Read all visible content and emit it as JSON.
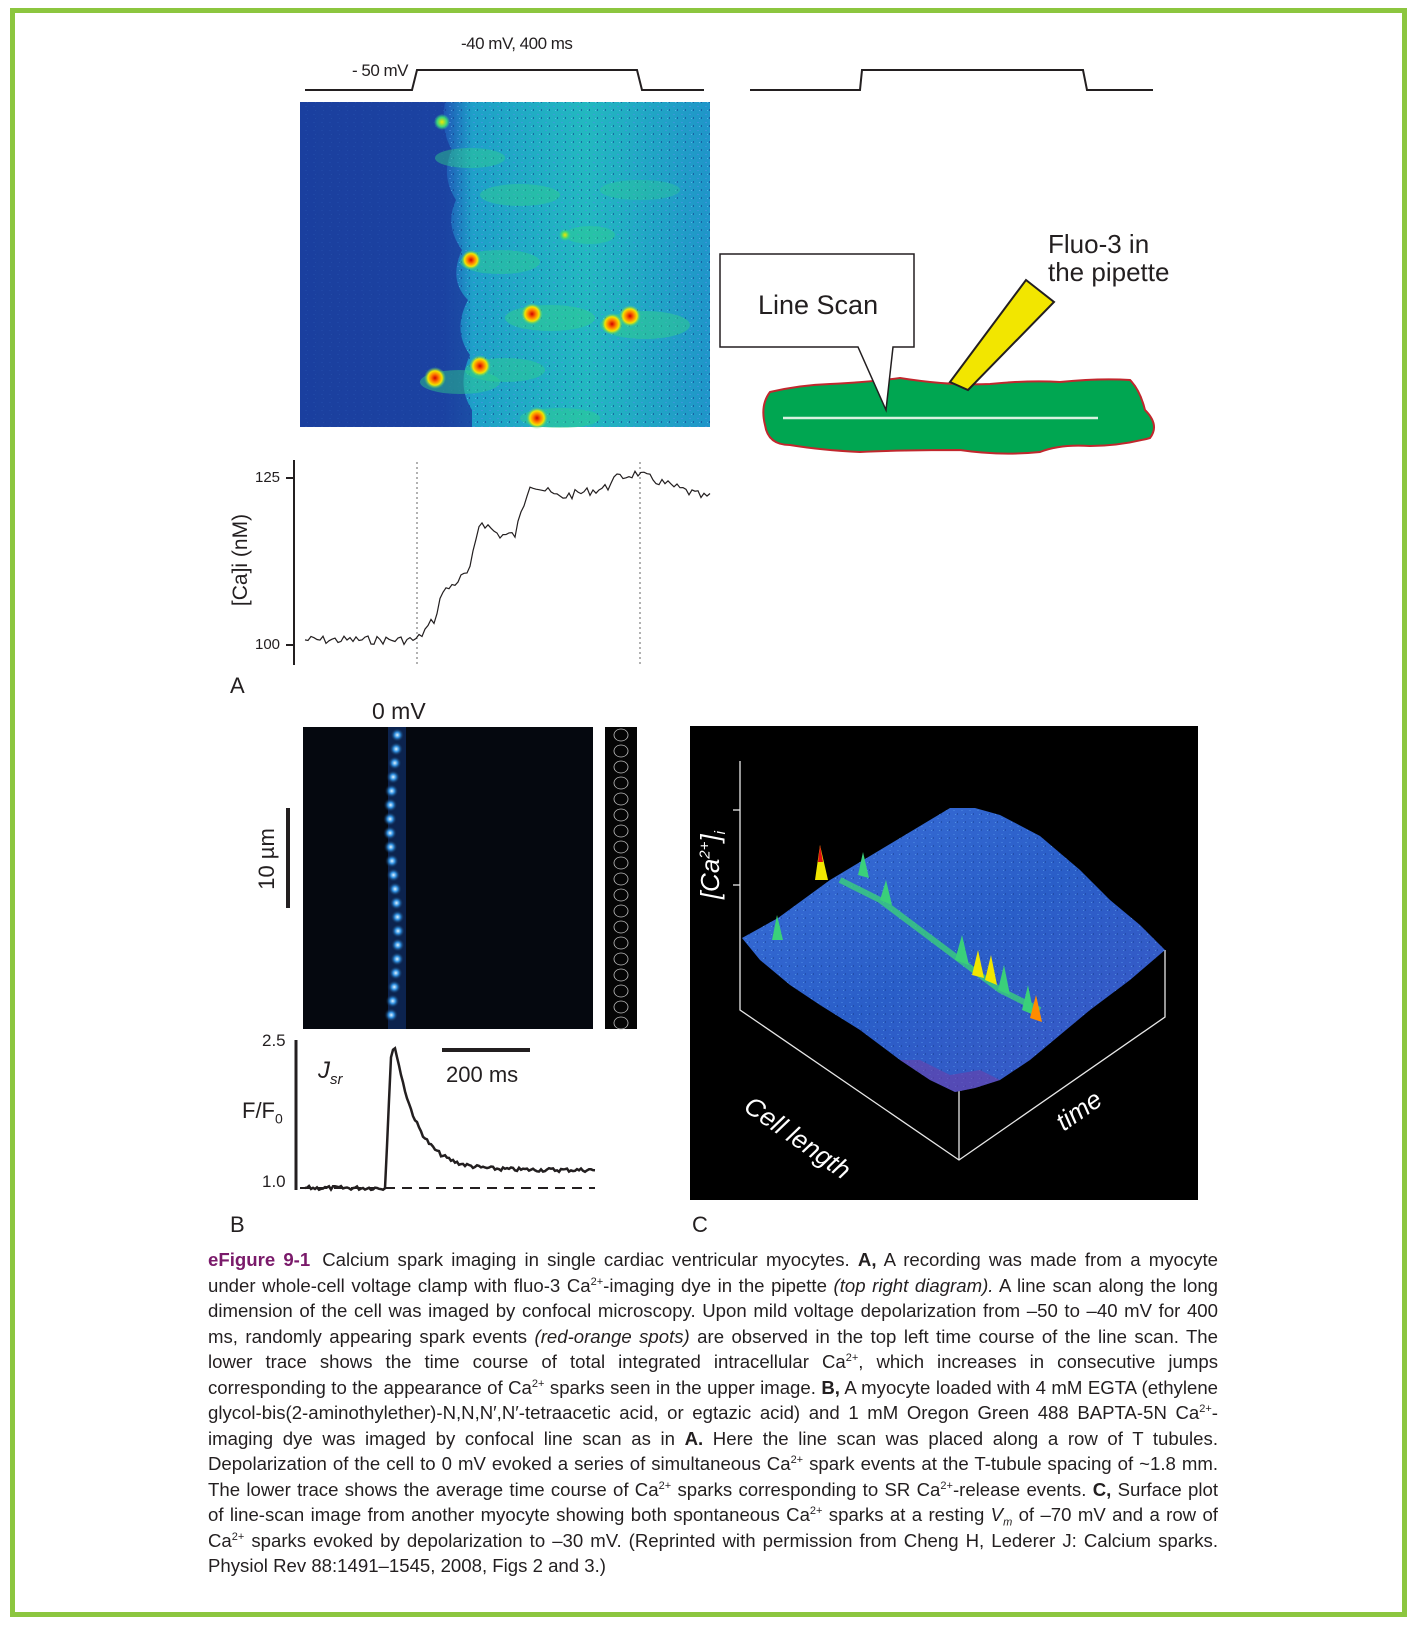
{
  "figure": {
    "panel_a": {
      "letter": "A",
      "voltage_label_top": "-40 mV, 400 ms",
      "voltage_label_left": "- 50 mV",
      "diagram": {
        "line_scan_label": "Line Scan",
        "pipette_label_line1": "Fluo-3 in",
        "pipette_label_line2": "the pipette"
      },
      "trace": {
        "ylabel": "[Ca]i (nM)",
        "ytick_top": "125",
        "ytick_bottom": "100"
      }
    },
    "panel_b": {
      "letter": "B",
      "voltage_label": "0 mV",
      "scale_um": "10 µm",
      "trace_label": "J",
      "trace_label_sub": "sr",
      "scale_ms": "200 ms",
      "ylabel": "F/F",
      "ylabel_sub": "0",
      "ytick_top": "2.5",
      "ytick_bottom": "1.0"
    },
    "panel_c": {
      "letter": "C",
      "z_label": "[Ca",
      "z_label_sup": "2+",
      "z_label_end": "]",
      "z_label_sub": "i",
      "x_label": "Cell length",
      "y_label": "time"
    }
  },
  "caption": {
    "label": "eFigure 9-1",
    "title": "Calcium spark imaging in single cardiac ventricular myocytes.",
    "a_marker": "A,",
    "a_text1": "A recording was made from a myocyte under whole-cell voltage clamp with fluo-3 Ca",
    "a_text1b": "-imaging dye in the pipette ",
    "a_italic1": "(top right diagram).",
    "a_text2": " A line scan along the long dimension of the cell was imaged by confocal microscopy. Upon mild voltage depolarization from –50 to –40 mV for 400 ms, randomly appearing spark events ",
    "a_italic2": "(red-orange spots)",
    "a_text3": " are observed in the top left time course of the line scan. The lower trace shows the time course of total integrated intracellular Ca",
    "a_text4": ", which increases in consecutive jumps corresponding to the appearance of Ca",
    "a_text5": " sparks seen in the upper image.",
    "b_marker": "B,",
    "b_text1": " A myocyte loaded with 4 mM EGTA (ethylene glycol-bis(2-aminothylether)-N,N,N′,N′-tetraacetic acid, or egtazic acid) and 1 mM Oregon Green 488 BAPTA-5N Ca",
    "b_text2": "-imaging dye was imaged by confocal line scan as in ",
    "b_ref": "A.",
    "b_text3": " Here the line scan was placed along a row of T tubules. Depolarization of the cell to 0 mV evoked a series of simultaneous Ca",
    "b_text4": " spark events at the T-tubule spacing of ~1.8 mm. The lower trace shows the average time course of Ca",
    "b_text5": " sparks corresponding to SR Ca",
    "b_text6": "-release events.",
    "c_marker": "C,",
    "c_text1": " Surface plot of line-scan image from another myocyte showing both spontaneous Ca",
    "c_text2": " sparks at a resting ",
    "c_vm": "V",
    "c_vm_sub": "m",
    "c_text3": " of –70 mV and a row of Ca",
    "c_text4": " sparks evoked by depolarization to –30 mV. (Reprinted with permission from Cheng H, Lederer J: Calcium sparks. Physiol Rev 88:1491–1545, 2008, Figs 2 and 3.)",
    "sup": "2+"
  },
  "colors": {
    "frame": "#8cc63f",
    "caption_label": "#7a1a6a",
    "cell_green": "#00a651",
    "cell_border": "#c1272d",
    "pipette_yellow": "#f2e600",
    "linescan_bg": "#1f5fb0"
  }
}
